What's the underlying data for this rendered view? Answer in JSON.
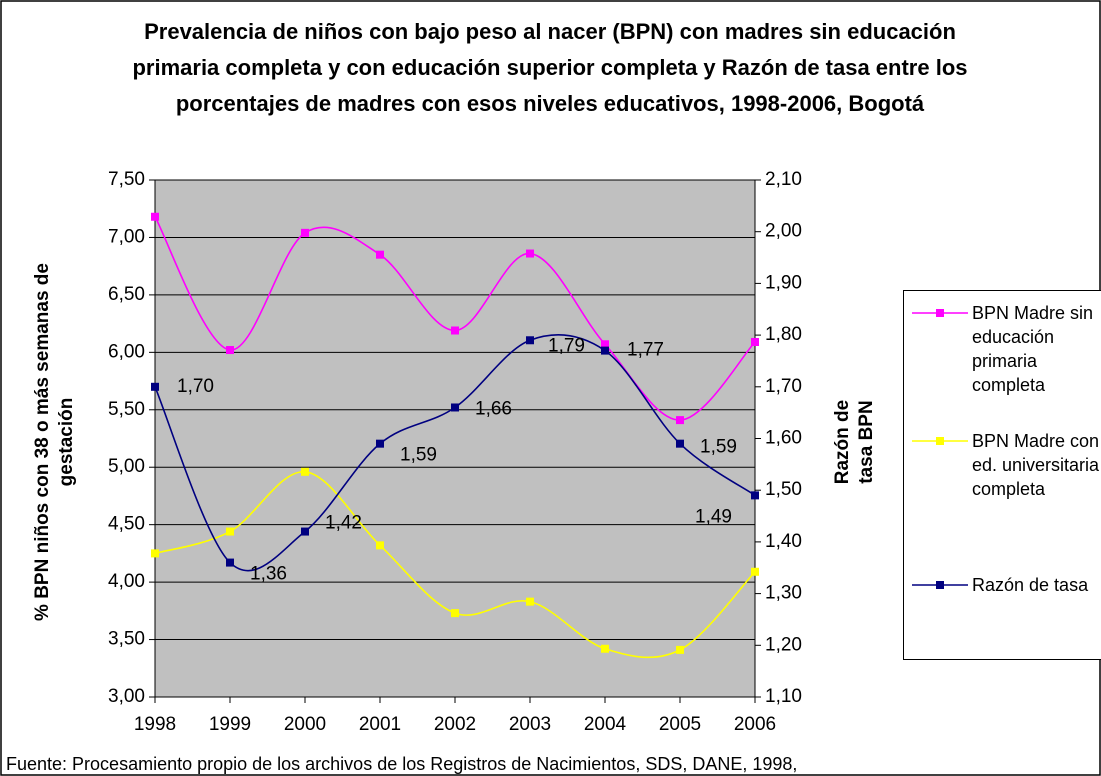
{
  "chart_data": {
    "type": "line",
    "title": "Prevalencia de niños con bajo peso al nacer (BPN) con madres sin educación primaria completa y con educación superior completa y Razón de tasa entre los porcentajes de madres con esos niveles educativos, 1998-2006, Bogotá",
    "ylabel": "% BPN niños con 38 o más semanas de gestación",
    "y2label": "Razón de tasa BPN",
    "source": "Fuente: Procesamiento propio de los archivos de los Registros de Nacimientos, SDS, DANE, 1998,",
    "x": [
      1998,
      1999,
      2000,
      2001,
      2002,
      2003,
      2004,
      2005,
      2006
    ],
    "xlim": [
      1998,
      2006
    ],
    "xticks": [
      1998,
      1999,
      2000,
      2001,
      2002,
      2003,
      2004,
      2005,
      2006
    ],
    "ylim": [
      3,
      7.5
    ],
    "yticks": [
      {
        "value": 3,
        "label": "3,00"
      },
      {
        "value": 3.5,
        "label": "3,50"
      },
      {
        "value": 4,
        "label": "4,00"
      },
      {
        "value": 4.5,
        "label": "4,50"
      },
      {
        "value": 5,
        "label": "5,00"
      },
      {
        "value": 5.5,
        "label": "5,50"
      },
      {
        "value": 6,
        "label": "6,00"
      },
      {
        "value": 6.5,
        "label": "6,50"
      },
      {
        "value": 7,
        "label": "7,00"
      },
      {
        "value": 7.5,
        "label": "7,50"
      }
    ],
    "y2lim": [
      1.1,
      2.1
    ],
    "y2ticks": [
      {
        "value": 1.1,
        "label": "1,10"
      },
      {
        "value": 1.2,
        "label": "1,20"
      },
      {
        "value": 1.3,
        "label": "1,30"
      },
      {
        "value": 1.4,
        "label": "1,40"
      },
      {
        "value": 1.5,
        "label": "1,50"
      },
      {
        "value": 1.6,
        "label": "1,60"
      },
      {
        "value": 1.7,
        "label": "1,70"
      },
      {
        "value": 1.8,
        "label": "1,80"
      },
      {
        "value": 1.9,
        "label": "1,90"
      },
      {
        "value": 2.0,
        "label": "2,00"
      },
      {
        "value": 2.1,
        "label": "2,10"
      }
    ],
    "grid": true,
    "legend": "right",
    "series": [
      {
        "name": "BPN Madre sin educación primaria completa",
        "color": "#ff00ff",
        "values": [
          7.18,
          6.02,
          7.04,
          6.85,
          6.19,
          6.86,
          6.07,
          5.41,
          6.09
        ]
      },
      {
        "name": "BPN Madre con ed. universitaria completa",
        "color": "#ffff00",
        "values": [
          4.25,
          4.44,
          4.96,
          4.32,
          3.73,
          3.83,
          3.42,
          3.41,
          4.09
        ]
      },
      {
        "name": "Razón de tasa",
        "color": "#000080",
        "axis": "y2",
        "values": [
          1.7,
          1.36,
          1.42,
          1.59,
          1.66,
          1.79,
          1.77,
          1.59,
          1.49
        ],
        "value_labels": [
          "1,70",
          "1,36",
          "1,42",
          "1,59",
          "1,66",
          "1,79",
          "1,77",
          "1,59",
          "1,49"
        ]
      }
    ]
  }
}
